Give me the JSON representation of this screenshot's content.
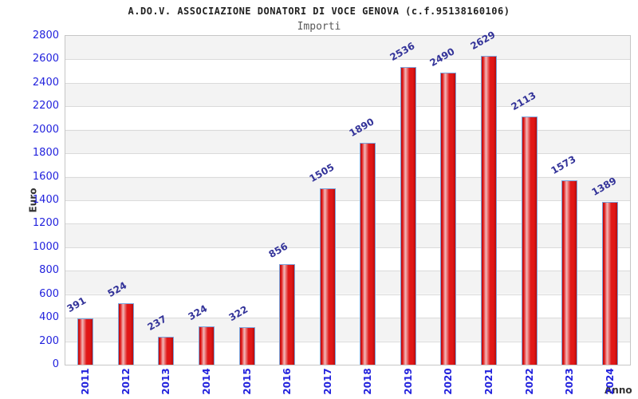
{
  "header": {
    "title": "A.DO.V. ASSOCIAZIONE DONATORI DI VOCE GENOVA (c.f.95138160106)",
    "subtitle": "Importi"
  },
  "chart_data": {
    "type": "bar",
    "title": "A.DO.V. ASSOCIAZIONE DONATORI DI VOCE GENOVA (c.f.95138160106)",
    "subtitle": "Importi",
    "xlabel": "Anno",
    "ylabel": "Euro",
    "categories": [
      "2011",
      "2012",
      "2013",
      "2014",
      "2015",
      "2016",
      "2017",
      "2018",
      "2019",
      "2020",
      "2021",
      "2022",
      "2023",
      "2024"
    ],
    "values": [
      391,
      524,
      237,
      324,
      322,
      856,
      1505,
      1890,
      2536,
      2490,
      2629,
      2113,
      1573,
      1389
    ],
    "ylim": [
      0,
      2800
    ],
    "ytick_step": 200,
    "grid": "horizontal-bands-alternating",
    "legend": "none",
    "bar_value_labels": true,
    "colors": {
      "bar_fill": "#e01818",
      "bar_highlight": "#f2b9b9",
      "bar_edge_dark": "#b50d0d",
      "bar_border": "#7aa4dc",
      "tick_label": "#2222dd",
      "value_label": "#333399",
      "band_gray": "#f3f3f3",
      "band_white": "#ffffff",
      "axis_title": "#333333",
      "title_text": "#1f1f1f",
      "subtitle_text": "#595959"
    }
  }
}
